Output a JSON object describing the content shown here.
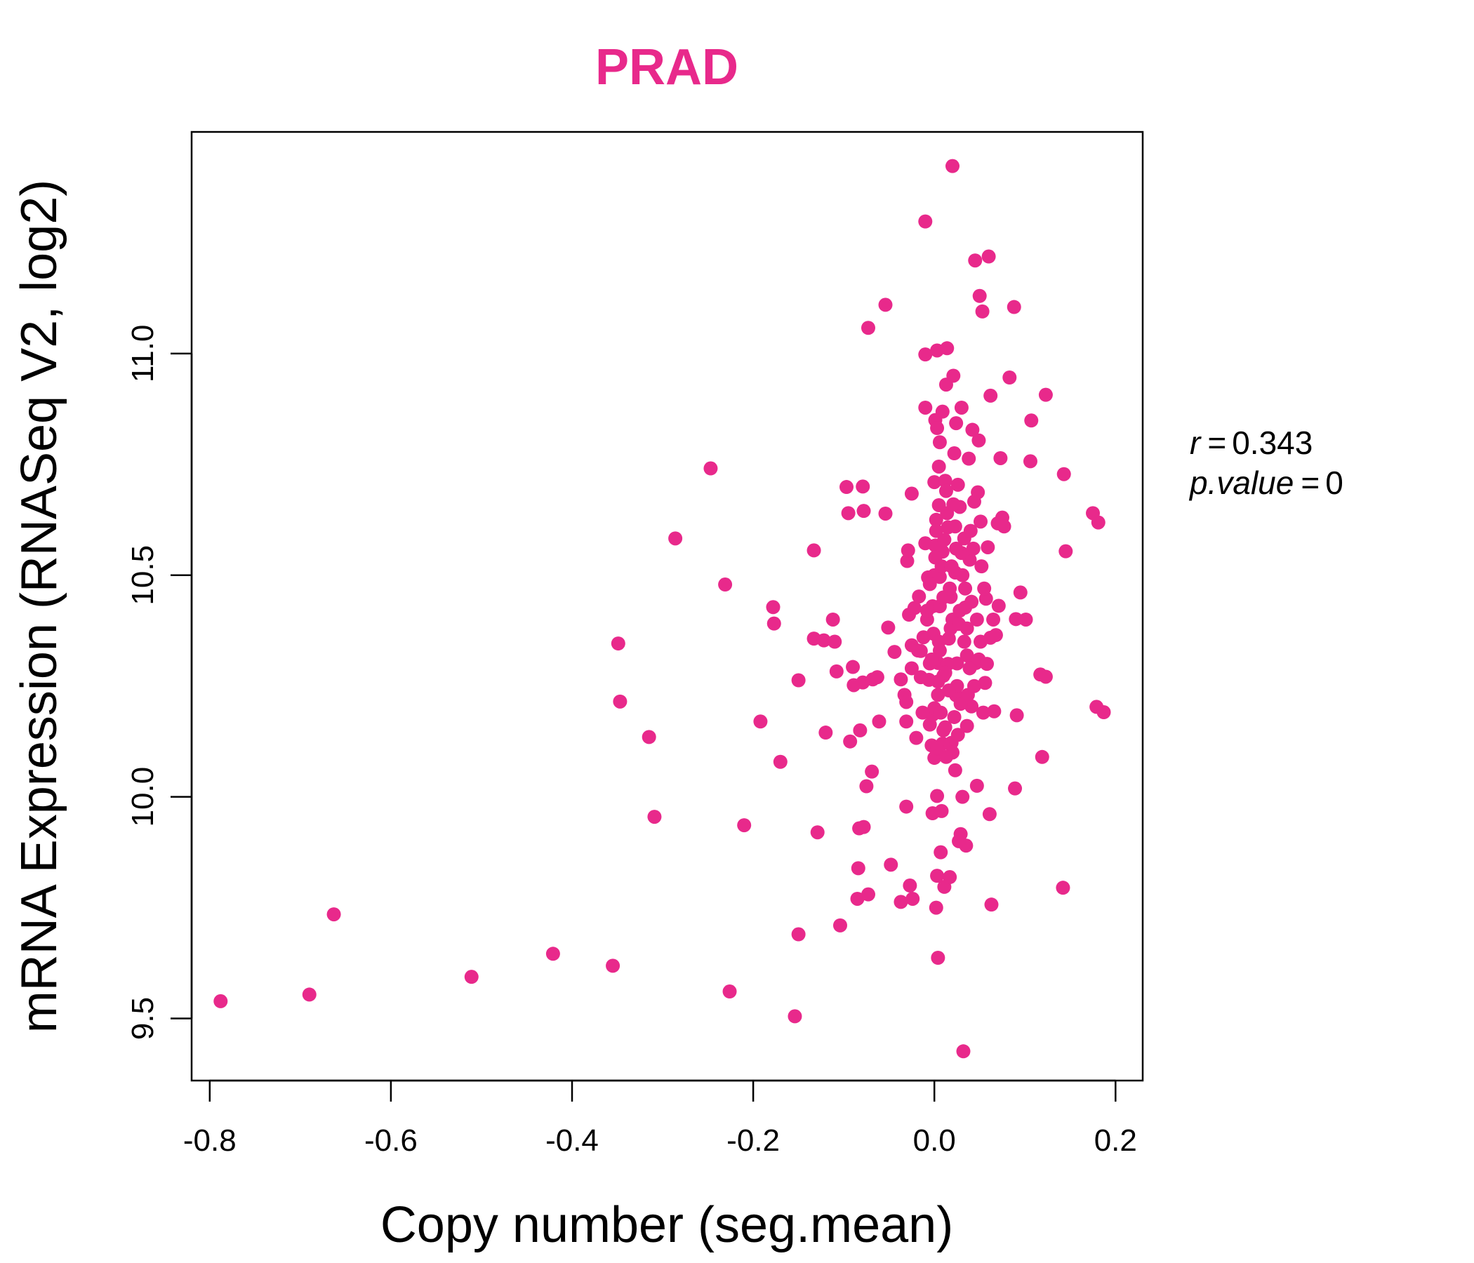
{
  "chart_data": {
    "type": "scatter",
    "title": "PRAD",
    "xlabel": "Copy number (seg.mean)",
    "ylabel": "mRNA Expression (RNASeq V2, log2)",
    "xlim": [
      -0.82,
      0.23
    ],
    "ylim": [
      9.36,
      11.5
    ],
    "xticks": [
      "-0.8",
      "-0.6",
      "-0.4",
      "-0.2",
      "0.0",
      "0.2"
    ],
    "yticks": [
      "9.5",
      "10.0",
      "10.5",
      "11.0"
    ],
    "color": "#E8298B",
    "annotation": {
      "r_label": "r",
      "r_value": "0.343",
      "p_label": "p.value",
      "p_value": "0"
    },
    "points": [
      [
        -0.788,
        9.539
      ],
      [
        -0.69,
        9.554
      ],
      [
        -0.663,
        9.735
      ],
      [
        -0.511,
        9.594
      ],
      [
        -0.421,
        9.646
      ],
      [
        -0.355,
        9.619
      ],
      [
        -0.349,
        10.346
      ],
      [
        -0.347,
        10.215
      ],
      [
        -0.315,
        10.135
      ],
      [
        -0.309,
        9.955
      ],
      [
        -0.286,
        10.583
      ],
      [
        -0.247,
        10.741
      ],
      [
        -0.231,
        10.479
      ],
      [
        -0.226,
        9.561
      ],
      [
        -0.21,
        9.936
      ],
      [
        -0.192,
        10.17
      ],
      [
        -0.178,
        10.428
      ],
      [
        -0.177,
        10.391
      ],
      [
        -0.17,
        10.079
      ],
      [
        -0.154,
        9.505
      ],
      [
        -0.15,
        9.69
      ],
      [
        -0.15,
        10.263
      ],
      [
        -0.133,
        10.357
      ],
      [
        -0.133,
        10.556
      ],
      [
        -0.129,
        9.92
      ],
      [
        -0.122,
        10.353
      ],
      [
        -0.12,
        10.145
      ],
      [
        -0.112,
        10.4
      ],
      [
        -0.11,
        10.35
      ],
      [
        -0.108,
        10.283
      ],
      [
        -0.104,
        9.71
      ],
      [
        -0.097,
        10.699
      ],
      [
        -0.095,
        10.64
      ],
      [
        -0.093,
        10.125
      ],
      [
        -0.09,
        10.293
      ],
      [
        -0.089,
        10.252
      ],
      [
        -0.085,
        9.77
      ],
      [
        -0.084,
        9.839
      ],
      [
        -0.083,
        9.929
      ],
      [
        -0.082,
        10.15
      ],
      [
        -0.079,
        10.7
      ],
      [
        -0.079,
        10.258
      ],
      [
        -0.078,
        9.932
      ],
      [
        -0.078,
        10.645
      ],
      [
        -0.075,
        10.024
      ],
      [
        -0.073,
        11.058
      ],
      [
        -0.073,
        9.78
      ],
      [
        -0.069,
        10.057
      ],
      [
        -0.068,
        10.265
      ],
      [
        -0.063,
        10.27
      ],
      [
        -0.061,
        10.17
      ],
      [
        -0.054,
        11.11
      ],
      [
        -0.054,
        10.639
      ],
      [
        -0.051,
        10.382
      ],
      [
        -0.048,
        9.847
      ],
      [
        -0.044,
        10.327
      ],
      [
        -0.037,
        9.763
      ],
      [
        -0.037,
        10.265
      ],
      [
        -0.033,
        10.23
      ],
      [
        -0.031,
        9.978
      ],
      [
        -0.031,
        10.214
      ],
      [
        -0.031,
        10.17
      ],
      [
        -0.03,
        10.532
      ],
      [
        -0.029,
        10.556
      ],
      [
        -0.028,
        10.411
      ],
      [
        -0.027,
        9.8
      ],
      [
        -0.025,
        10.342
      ],
      [
        -0.025,
        10.684
      ],
      [
        -0.025,
        10.29
      ],
      [
        -0.024,
        9.77
      ],
      [
        -0.022,
        10.426
      ],
      [
        -0.02,
        10.133
      ],
      [
        -0.017,
        10.452
      ],
      [
        -0.015,
        10.329
      ],
      [
        -0.01,
        11.298
      ],
      [
        -0.01,
        10.878
      ],
      [
        -0.01,
        10.998
      ],
      [
        -0.01,
        10.572
      ],
      [
        -0.008,
        10.4
      ],
      [
        -0.007,
        10.495
      ],
      [
        -0.006,
        10.264
      ],
      [
        -0.005,
        10.301
      ],
      [
        -0.005,
        10.163
      ],
      [
        -0.003,
        10.116
      ],
      [
        -0.002,
        10.185
      ],
      [
        -0.002,
        9.963
      ],
      [
        -0.002,
        10.43
      ],
      [
        -0.001,
        10.368
      ],
      [
        0.0,
        10.088
      ],
      [
        0.0,
        10.71
      ],
      [
        0.001,
        10.85
      ],
      [
        0.001,
        10.567
      ],
      [
        0.002,
        10.625
      ],
      [
        0.002,
        9.75
      ],
      [
        0.003,
        11.007
      ],
      [
        0.003,
        10.832
      ],
      [
        0.003,
        10.002
      ],
      [
        0.003,
        9.822
      ],
      [
        0.004,
        10.23
      ],
      [
        0.004,
        10.302
      ],
      [
        0.004,
        9.637
      ],
      [
        0.005,
        10.745
      ],
      [
        0.005,
        10.658
      ],
      [
        0.006,
        10.8
      ],
      [
        0.006,
        10.496
      ],
      [
        0.006,
        10.43
      ],
      [
        0.007,
        9.875
      ],
      [
        0.008,
        9.968
      ],
      [
        0.009,
        10.869
      ],
      [
        0.009,
        10.553
      ],
      [
        0.01,
        10.273
      ],
      [
        0.011,
        9.797
      ],
      [
        0.012,
        10.713
      ],
      [
        0.012,
        10.157
      ],
      [
        0.013,
        10.93
      ],
      [
        0.014,
        11.012
      ],
      [
        0.015,
        10.608
      ],
      [
        0.016,
        10.357
      ],
      [
        0.017,
        9.819
      ],
      [
        0.018,
        10.451
      ],
      [
        0.019,
        10.122
      ],
      [
        0.02,
        11.423
      ],
      [
        0.021,
        10.95
      ],
      [
        0.022,
        10.775
      ],
      [
        0.023,
        10.506
      ],
      [
        0.024,
        10.843
      ],
      [
        0.024,
        10.229
      ],
      [
        0.025,
        10.301
      ],
      [
        0.026,
        10.704
      ],
      [
        0.027,
        9.9
      ],
      [
        0.028,
        10.654
      ],
      [
        0.029,
        9.916
      ],
      [
        0.03,
        10.878
      ],
      [
        0.031,
        10.0
      ],
      [
        0.032,
        9.426
      ],
      [
        0.033,
        10.583
      ],
      [
        0.034,
        10.427
      ],
      [
        0.035,
        9.89
      ],
      [
        0.036,
        10.319
      ],
      [
        0.038,
        10.763
      ],
      [
        0.039,
        10.535
      ],
      [
        0.041,
        10.204
      ],
      [
        0.042,
        10.828
      ],
      [
        0.044,
        10.666
      ],
      [
        0.045,
        11.21
      ],
      [
        0.046,
        10.302
      ],
      [
        0.047,
        10.025
      ],
      [
        0.048,
        10.687
      ],
      [
        0.049,
        10.804
      ],
      [
        0.05,
        11.13
      ],
      [
        0.051,
        10.621
      ],
      [
        0.053,
        11.095
      ],
      [
        0.054,
        10.19
      ],
      [
        0.056,
        10.257
      ],
      [
        0.057,
        10.447
      ],
      [
        0.059,
        10.563
      ],
      [
        0.06,
        11.219
      ],
      [
        0.061,
        9.961
      ],
      [
        0.062,
        10.905
      ],
      [
        0.062,
        10.359
      ],
      [
        0.063,
        9.757
      ],
      [
        0.065,
        10.4
      ],
      [
        0.066,
        10.193
      ],
      [
        0.068,
        10.365
      ],
      [
        0.07,
        10.617
      ],
      [
        0.071,
        10.431
      ],
      [
        0.073,
        10.764
      ],
      [
        0.075,
        10.63
      ],
      [
        0.077,
        10.61
      ],
      [
        0.083,
        10.946
      ],
      [
        0.088,
        11.105
      ],
      [
        0.089,
        10.019
      ],
      [
        0.09,
        10.401
      ],
      [
        0.091,
        10.184
      ],
      [
        0.095,
        10.461
      ],
      [
        0.101,
        10.4
      ],
      [
        0.106,
        10.757
      ],
      [
        0.107,
        10.849
      ],
      [
        0.117,
        10.276
      ],
      [
        0.119,
        10.09
      ],
      [
        0.123,
        10.907
      ],
      [
        0.123,
        10.271
      ],
      [
        0.142,
        9.795
      ],
      [
        0.143,
        10.728
      ],
      [
        0.145,
        10.554
      ],
      [
        0.175,
        10.64
      ],
      [
        0.179,
        10.203
      ],
      [
        0.181,
        10.619
      ],
      [
        0.187,
        10.191
      ],
      [
        0.0,
        10.5
      ],
      [
        0.01,
        10.45
      ],
      [
        0.02,
        10.4
      ],
      [
        0.005,
        10.35
      ],
      [
        0.015,
        10.3
      ],
      [
        0.025,
        10.25
      ],
      [
        0.0,
        10.2
      ],
      [
        0.01,
        10.15
      ],
      [
        0.02,
        10.1
      ],
      [
        0.03,
        10.55
      ],
      [
        -0.005,
        10.48
      ],
      [
        0.008,
        10.52
      ],
      [
        0.018,
        10.38
      ],
      [
        0.028,
        10.42
      ],
      [
        0.012,
        10.28
      ],
      [
        0.022,
        10.18
      ],
      [
        0.002,
        10.6
      ],
      [
        0.014,
        10.64
      ],
      [
        0.024,
        10.56
      ],
      [
        0.034,
        10.47
      ],
      [
        0.006,
        10.33
      ],
      [
        0.016,
        10.24
      ],
      [
        0.026,
        10.14
      ],
      [
        0.036,
        10.38
      ],
      [
        -0.008,
        10.42
      ],
      [
        0.004,
        10.26
      ],
      [
        0.019,
        10.52
      ],
      [
        0.029,
        10.21
      ],
      [
        0.009,
        10.12
      ],
      [
        0.039,
        10.29
      ],
      [
        0.013,
        10.69
      ],
      [
        0.023,
        10.61
      ],
      [
        0.033,
        10.35
      ],
      [
        -0.003,
        10.31
      ],
      [
        0.017,
        10.47
      ],
      [
        0.027,
        10.39
      ],
      [
        0.007,
        10.19
      ],
      [
        0.037,
        10.23
      ],
      [
        0.021,
        10.66
      ],
      [
        0.011,
        10.58
      ],
      [
        0.001,
        10.54
      ],
      [
        0.031,
        10.5
      ],
      [
        0.041,
        10.44
      ],
      [
        -0.012,
        10.36
      ],
      [
        0.043,
        10.56
      ],
      [
        0.003,
        10.11
      ],
      [
        0.013,
        10.09
      ],
      [
        0.023,
        10.06
      ],
      [
        0.047,
        10.4
      ],
      [
        0.051,
        10.35
      ],
      [
        0.055,
        10.47
      ],
      [
        0.044,
        10.25
      ],
      [
        0.049,
        10.31
      ],
      [
        0.036,
        10.16
      ],
      [
        0.04,
        10.6
      ],
      [
        -0.015,
        10.27
      ],
      [
        -0.018,
        10.33
      ],
      [
        -0.013,
        10.19
      ],
      [
        0.058,
        10.3
      ],
      [
        0.052,
        10.52
      ]
    ]
  }
}
